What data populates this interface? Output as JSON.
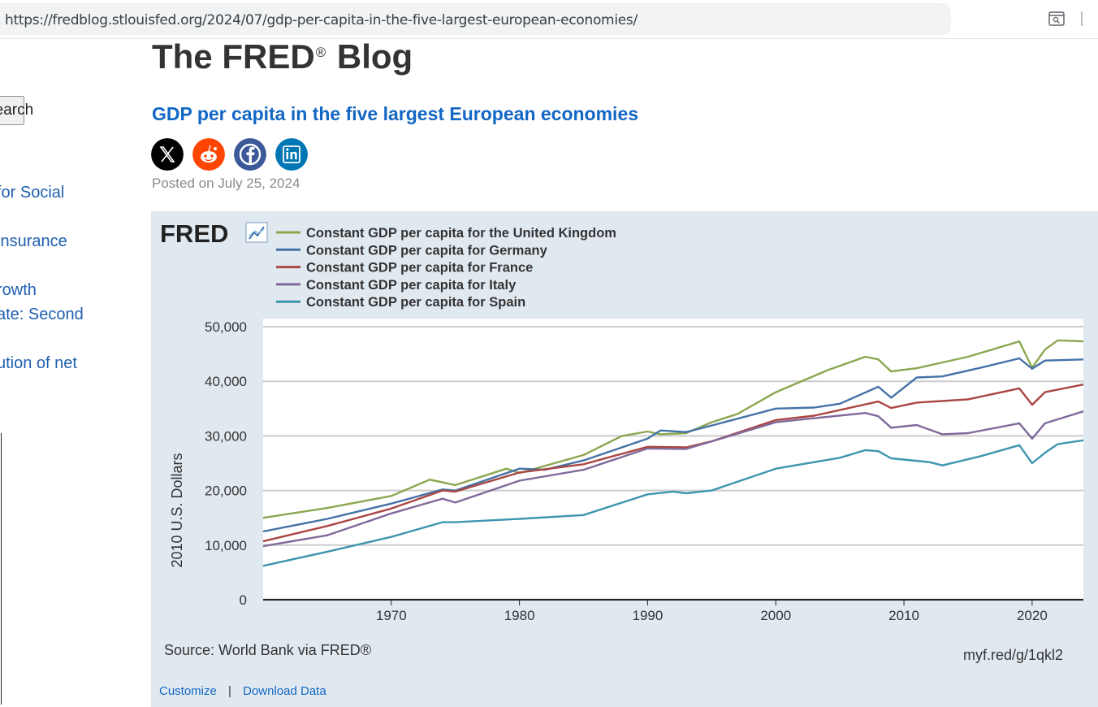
{
  "browser": {
    "url": "https://fredblog.stlouisfed.org/2024/07/gdp-per-capita-in-the-five-largest-european-economies/"
  },
  "sidebar": {
    "search_label": "Search",
    "links": [
      "for Social",
      "insurance",
      "rowth",
      "ate: Second",
      "ution of net"
    ]
  },
  "blog": {
    "title": "The FRED",
    "registered": "®",
    "title_suffix": "Blog",
    "post_title": "GDP per capita in the five largest European economies",
    "posted": "Posted on July 25, 2024",
    "share": [
      "x-share-icon",
      "reddit-share-icon",
      "facebook-share-icon",
      "linkedin-share-icon"
    ]
  },
  "graph": {
    "logo": "FRED",
    "source": "Source: World Bank via FRED®",
    "shortlink": "myf.red/g/1qkl2",
    "customize": "Customize",
    "separator": "|",
    "download": "Download Data"
  },
  "chart_data": {
    "type": "line",
    "title": "",
    "ylabel": "2010 U.S. Dollars",
    "xlabel": "",
    "xlim": [
      1960,
      2024
    ],
    "ylim": [
      0,
      50000
    ],
    "x_ticks": [
      1970,
      1980,
      1990,
      2000,
      2010,
      2020
    ],
    "y_ticks": [
      0,
      10000,
      20000,
      30000,
      40000,
      50000
    ],
    "y_tick_labels": [
      "0",
      "10,000",
      "20,000",
      "30,000",
      "40,000",
      "50,000"
    ],
    "grid": true,
    "legend": "top-left",
    "series": [
      {
        "name": "Constant GDP per capita for the United Kingdom",
        "color": "#8ba64f",
        "points": [
          [
            1960,
            15000
          ],
          [
            1965,
            16800
          ],
          [
            1970,
            19000
          ],
          [
            1973,
            22000
          ],
          [
            1975,
            21000
          ],
          [
            1979,
            24000
          ],
          [
            1980,
            23200
          ],
          [
            1985,
            26500
          ],
          [
            1988,
            30000
          ],
          [
            1990,
            30800
          ],
          [
            1991,
            30300
          ],
          [
            1993,
            30500
          ],
          [
            1995,
            32500
          ],
          [
            1997,
            34000
          ],
          [
            2000,
            38000
          ],
          [
            2004,
            42000
          ],
          [
            2007,
            44500
          ],
          [
            2008,
            44000
          ],
          [
            2009,
            41800
          ],
          [
            2011,
            42400
          ],
          [
            2015,
            44500
          ],
          [
            2019,
            47300
          ],
          [
            2020,
            42500
          ],
          [
            2021,
            45800
          ],
          [
            2022,
            47500
          ],
          [
            2024,
            47300
          ]
        ]
      },
      {
        "name": "Constant GDP per capita for Germany",
        "color": "#4572a7",
        "points": [
          [
            1960,
            12500
          ],
          [
            1965,
            14800
          ],
          [
            1970,
            17600
          ],
          [
            1974,
            20200
          ],
          [
            1975,
            20000
          ],
          [
            1980,
            24000
          ],
          [
            1982,
            23800
          ],
          [
            1985,
            25500
          ],
          [
            1990,
            29500
          ],
          [
            1991,
            31000
          ],
          [
            1993,
            30700
          ],
          [
            1995,
            31900
          ],
          [
            2000,
            35000
          ],
          [
            2003,
            35200
          ],
          [
            2005,
            35900
          ],
          [
            2008,
            39000
          ],
          [
            2009,
            37000
          ],
          [
            2011,
            40700
          ],
          [
            2013,
            40900
          ],
          [
            2016,
            42500
          ],
          [
            2019,
            44200
          ],
          [
            2020,
            42300
          ],
          [
            2021,
            43800
          ],
          [
            2024,
            44000
          ]
        ]
      },
      {
        "name": "Constant GDP per capita for France",
        "color": "#aa4643",
        "points": [
          [
            1960,
            10700
          ],
          [
            1965,
            13500
          ],
          [
            1970,
            16700
          ],
          [
            1974,
            20000
          ],
          [
            1975,
            19800
          ],
          [
            1980,
            23300
          ],
          [
            1985,
            24800
          ],
          [
            1990,
            28000
          ],
          [
            1993,
            27900
          ],
          [
            1995,
            29000
          ],
          [
            2000,
            32900
          ],
          [
            2003,
            33700
          ],
          [
            2008,
            36300
          ],
          [
            2009,
            35100
          ],
          [
            2011,
            36100
          ],
          [
            2015,
            36700
          ],
          [
            2019,
            38700
          ],
          [
            2020,
            35700
          ],
          [
            2021,
            38000
          ],
          [
            2024,
            39400
          ]
        ]
      },
      {
        "name": "Constant GDP per capita for Italy",
        "color": "#80699b",
        "points": [
          [
            1960,
            9800
          ],
          [
            1965,
            11800
          ],
          [
            1970,
            15800
          ],
          [
            1974,
            18500
          ],
          [
            1975,
            17800
          ],
          [
            1980,
            21800
          ],
          [
            1985,
            23800
          ],
          [
            1990,
            27700
          ],
          [
            1993,
            27600
          ],
          [
            1995,
            29000
          ],
          [
            2000,
            32500
          ],
          [
            2002,
            33000
          ],
          [
            2007,
            34200
          ],
          [
            2008,
            33600
          ],
          [
            2009,
            31500
          ],
          [
            2011,
            32000
          ],
          [
            2013,
            30300
          ],
          [
            2015,
            30500
          ],
          [
            2019,
            32300
          ],
          [
            2020,
            29500
          ],
          [
            2021,
            32300
          ],
          [
            2024,
            34500
          ]
        ]
      },
      {
        "name": "Constant GDP per capita for Spain",
        "color": "#3d96ae",
        "points": [
          [
            1960,
            6200
          ],
          [
            1965,
            8800
          ],
          [
            1970,
            11500
          ],
          [
            1974,
            14200
          ],
          [
            1975,
            14200
          ],
          [
            1980,
            14800
          ],
          [
            1985,
            15500
          ],
          [
            1990,
            19300
          ],
          [
            1992,
            19800
          ],
          [
            1993,
            19500
          ],
          [
            1995,
            20000
          ],
          [
            2000,
            24000
          ],
          [
            2005,
            26000
          ],
          [
            2007,
            27400
          ],
          [
            2008,
            27200
          ],
          [
            2009,
            25900
          ],
          [
            2012,
            25200
          ],
          [
            2013,
            24600
          ],
          [
            2016,
            26300
          ],
          [
            2019,
            28300
          ],
          [
            2020,
            25000
          ],
          [
            2021,
            26900
          ],
          [
            2022,
            28500
          ],
          [
            2024,
            29200
          ]
        ]
      }
    ]
  }
}
